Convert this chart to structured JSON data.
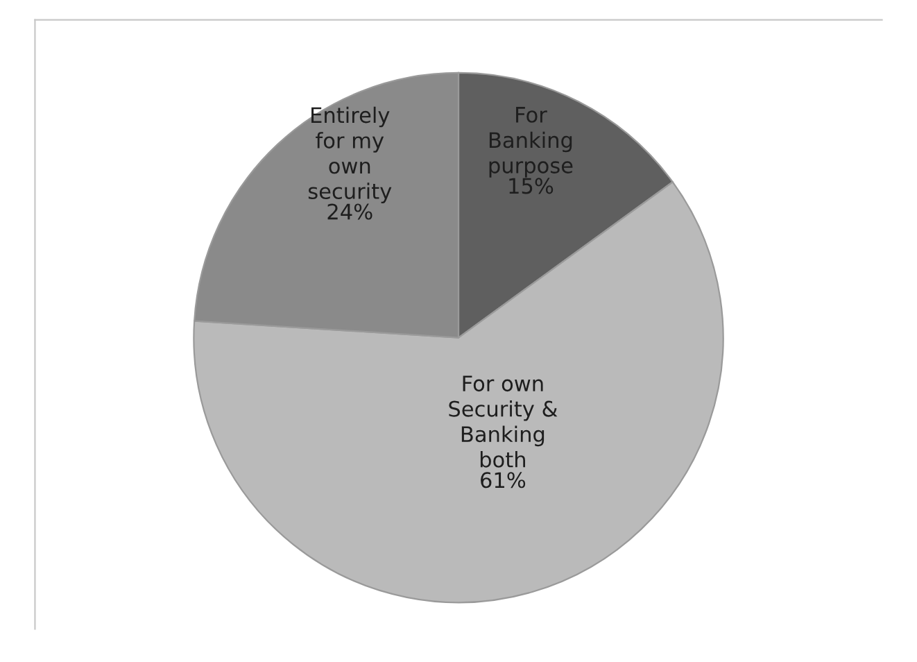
{
  "chart_data": {
    "type": "pie",
    "categories": [
      "For\nBanking\npurpose",
      "For own\nSecurity &\nBanking\nboth",
      "Entirely\nfor my\nown\nsecurity"
    ],
    "values": [
      15,
      61,
      24
    ],
    "value_labels": [
      "15%",
      "61%",
      "24%"
    ],
    "colors": [
      "#5f5f5f",
      "#bababa",
      "#8a8a8a"
    ]
  }
}
